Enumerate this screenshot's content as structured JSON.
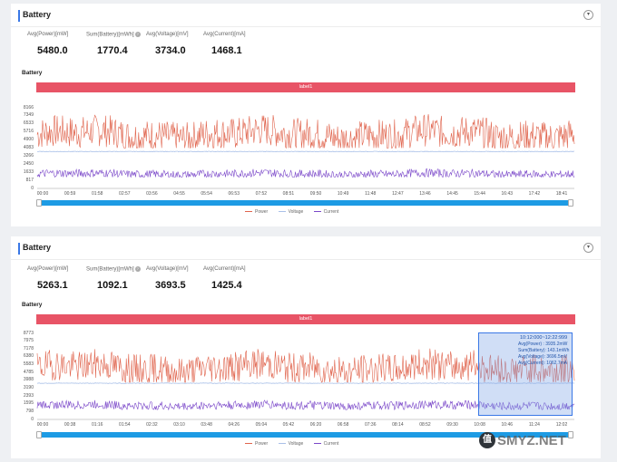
{
  "panels": [
    {
      "title": "Battery",
      "stats": [
        {
          "label": "Avg(Power)[mW]",
          "value": "5480.0",
          "help": false
        },
        {
          "label": "Sum(Battery)[mWh]",
          "value": "1770.4",
          "help": true
        },
        {
          "label": "Avg(Voltage)[mV]",
          "value": "3734.0",
          "help": false
        },
        {
          "label": "Avg(Current)[mA]",
          "value": "1468.1",
          "help": false
        }
      ],
      "chart_title": "Battery",
      "band_label": "label1",
      "legend": [
        "Power",
        "Voltage",
        "Current"
      ]
    },
    {
      "title": "Battery",
      "stats": [
        {
          "label": "Avg(Power)[mW]",
          "value": "5263.1",
          "help": false
        },
        {
          "label": "Sum(Battery)[mWh]",
          "value": "1092.1",
          "help": true
        },
        {
          "label": "Avg(Voltage)[mV]",
          "value": "3693.5",
          "help": false
        },
        {
          "label": "Avg(Current)[mA]",
          "value": "1425.4",
          "help": false
        }
      ],
      "chart_title": "Battery",
      "band_label": "label1",
      "legend": [
        "Power",
        "Voltage",
        "Current"
      ],
      "tooltip": {
        "range": "10:12:000~12:22:999",
        "lines": [
          "Avg(Power) : 3935.2mW",
          "Sum(Battery): 143.1mWh",
          "Avg(Voltage): 3696.5mV",
          "Avg(Current): 1062.7mA"
        ]
      }
    }
  ],
  "chart_data": [
    {
      "type": "line",
      "title": "Battery",
      "y_ticks": [
        "8166",
        "7349",
        "6533",
        "5716",
        "4900",
        "4083",
        "3266",
        "2450",
        "1633",
        "817",
        "0"
      ],
      "x_ticks": [
        "00:00",
        "00:59",
        "01:58",
        "02:57",
        "03:56",
        "04:55",
        "05:54",
        "06:53",
        "07:52",
        "08:51",
        "09:50",
        "10:49",
        "11:48",
        "12:47",
        "13:46",
        "14:45",
        "15:44",
        "16:43",
        "17:42",
        "18:41"
      ],
      "ylim": [
        0,
        8166
      ],
      "series": [
        {
          "name": "Power",
          "color": "#e0644d",
          "approx_mean": 5480,
          "approx_range": [
            4100,
            7800
          ]
        },
        {
          "name": "Voltage",
          "color": "#a9c0e8",
          "approx_mean": 3734
        },
        {
          "name": "Current",
          "color": "#7a47c9",
          "approx_mean": 1468,
          "approx_range": [
            1150,
            2100
          ]
        }
      ],
      "grid": false,
      "legend": "bottom"
    },
    {
      "type": "line",
      "title": "Battery",
      "y_ticks": [
        "8773",
        "7975",
        "7178",
        "6380",
        "5583",
        "4785",
        "3988",
        "3190",
        "2393",
        "1595",
        "798",
        "0"
      ],
      "x_ticks": [
        "00:00",
        "00:38",
        "01:16",
        "01:54",
        "02:32",
        "03:10",
        "03:48",
        "04:26",
        "05:04",
        "05:42",
        "06:20",
        "06:58",
        "07:36",
        "08:14",
        "08:52",
        "09:30",
        "10:08",
        "10:46",
        "11:24",
        "12:02"
      ],
      "ylim": [
        0,
        8773
      ],
      "series": [
        {
          "name": "Power",
          "color": "#e0644d",
          "approx_mean": 5263,
          "approx_range": [
            3800,
            7300
          ]
        },
        {
          "name": "Voltage",
          "color": "#a9c0e8",
          "approx_mean": 3693
        },
        {
          "name": "Current",
          "color": "#7a47c9",
          "approx_mean": 1425,
          "approx_range": [
            1000,
            2000
          ]
        }
      ],
      "grid": false,
      "legend": "bottom"
    }
  ],
  "watermark": {
    "badge": "值",
    "text": "SMYZ.NET"
  }
}
